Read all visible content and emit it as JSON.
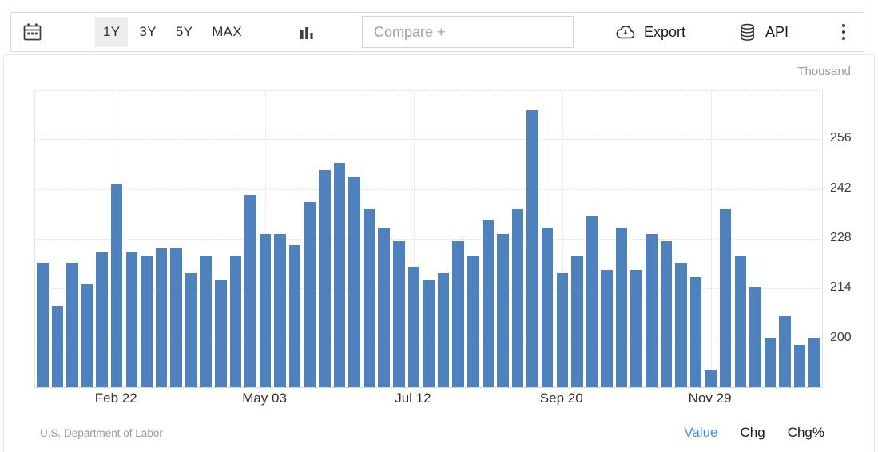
{
  "toolbar": {
    "range_buttons": [
      {
        "label": "1Y",
        "selected": true
      },
      {
        "label": "3Y",
        "selected": false
      },
      {
        "label": "5Y",
        "selected": false
      },
      {
        "label": "MAX",
        "selected": false
      }
    ],
    "compare_placeholder": "Compare +",
    "export_label": "Export",
    "api_label": "API"
  },
  "chart_data": {
    "type": "bar",
    "unit_label": "Thousand",
    "bar_color": "#4f81bd",
    "grid": true,
    "y_axis_side": "right",
    "y_ticks": [
      200,
      214,
      228,
      242,
      256
    ],
    "ylim": [
      186,
      269.5
    ],
    "x_tick_labels": [
      "Feb 22",
      "May 03",
      "Jul 12",
      "Sep 20",
      "Nov 29"
    ],
    "x_tick_indices": [
      5,
      15,
      25,
      35,
      45
    ],
    "values": [
      221,
      209,
      221,
      215,
      224,
      243,
      224,
      223,
      225,
      225,
      218,
      223,
      216,
      223,
      240,
      229,
      229,
      226,
      238,
      247,
      249,
      245,
      236,
      231,
      227,
      220,
      216,
      218,
      227,
      223,
      233,
      229,
      236,
      264,
      231,
      218,
      223,
      234,
      219,
      231,
      219,
      229,
      227,
      221,
      217,
      191,
      236,
      223,
      214,
      200,
      206,
      198,
      200
    ]
  },
  "footer": {
    "source": "U.S. Department of Labor",
    "modes": [
      {
        "label": "Value",
        "active": true
      },
      {
        "label": "Chg",
        "active": false
      },
      {
        "label": "Chg%",
        "active": false
      }
    ]
  }
}
